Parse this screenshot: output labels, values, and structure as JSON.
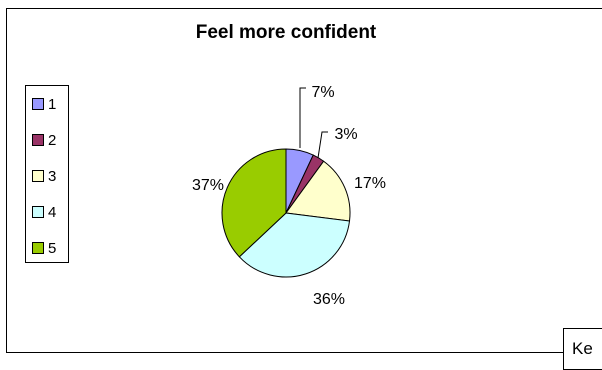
{
  "chart_data": {
    "type": "pie",
    "title": "Feel more confident",
    "categories": [
      "1",
      "2",
      "3",
      "4",
      "5"
    ],
    "values": [
      7,
      3,
      17,
      36,
      37
    ],
    "labels": [
      "7%",
      "3%",
      "17%",
      "36%",
      "37%"
    ],
    "colors": [
      "#9999FF",
      "#993366",
      "#FFFFCC",
      "#CCFFFF",
      "#99CC00"
    ],
    "legend_position": "left"
  },
  "key_box_text": "Ke"
}
